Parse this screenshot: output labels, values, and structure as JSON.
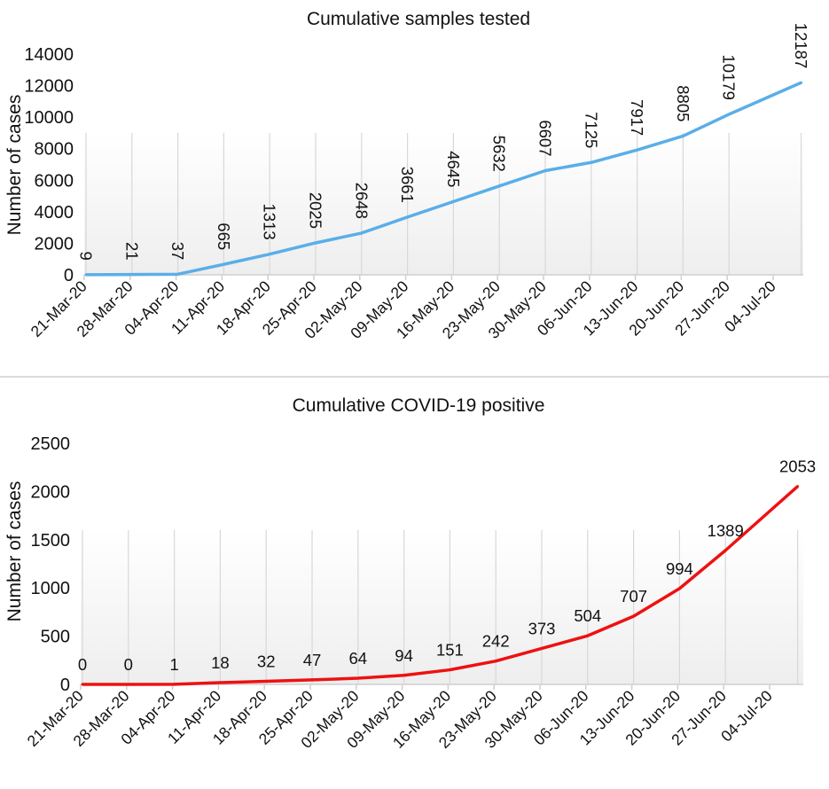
{
  "chart_data": [
    {
      "type": "line",
      "title": "Cumulative samples tested",
      "xlabel": "",
      "ylabel": "Number of cases",
      "ylim": [
        0,
        14000
      ],
      "yticks": [
        0,
        2000,
        4000,
        6000,
        8000,
        10000,
        12000,
        14000
      ],
      "xtick_labels": [
        "21-Mar-20",
        "28-Mar-20",
        "04-Apr-20",
        "11-Apr-20",
        "18-Apr-20",
        "25-Apr-20",
        "02-May-20",
        "09-May-20",
        "16-May-20",
        "23-May-20",
        "30-May-20",
        "06-Jun-20",
        "13-Jun-20",
        "20-Jun-20",
        "27-Jun-20",
        "04-Jul-20"
      ],
      "x": [
        "2020-03-21",
        "2020-03-28",
        "2020-04-04",
        "2020-04-11",
        "2020-04-18",
        "2020-04-25",
        "2020-05-02",
        "2020-05-09",
        "2020-05-16",
        "2020-05-23",
        "2020-05-30",
        "2020-06-06",
        "2020-06-13",
        "2020-06-20",
        "2020-06-27",
        "2020-07-08"
      ],
      "values": [
        9,
        21,
        37,
        665,
        1313,
        2025,
        2648,
        3661,
        4645,
        5632,
        6607,
        7125,
        7917,
        8805,
        10179,
        12187
      ],
      "data_labels": [
        "9",
        "21",
        "37",
        "665",
        "1313",
        "2025",
        "2648",
        "3661",
        "4645",
        "5632",
        "6607",
        "7125",
        "7917",
        "8805",
        "10179",
        "12187"
      ],
      "color": "#5aaee8",
      "label_orientation": "vertical",
      "grid": "vertical"
    },
    {
      "type": "line",
      "title": "Cumulative COVID-19 positive",
      "xlabel": "",
      "ylabel": "Number of cases",
      "ylim": [
        0,
        2500
      ],
      "yticks": [
        0,
        500,
        1000,
        1500,
        2000,
        2500
      ],
      "xtick_labels": [
        "21-Mar-20",
        "28-Mar-20",
        "04-Apr-20",
        "11-Apr-20",
        "18-Apr-20",
        "25-Apr-20",
        "02-May-20",
        "09-May-20",
        "16-May-20",
        "23-May-20",
        "30-May-20",
        "06-Jun-20",
        "13-Jun-20",
        "20-Jun-20",
        "27-Jun-20",
        "04-Jul-20"
      ],
      "x": [
        "2020-03-21",
        "2020-03-28",
        "2020-04-04",
        "2020-04-11",
        "2020-04-18",
        "2020-04-25",
        "2020-05-02",
        "2020-05-09",
        "2020-05-16",
        "2020-05-23",
        "2020-05-30",
        "2020-06-06",
        "2020-06-13",
        "2020-06-20",
        "2020-06-27",
        "2020-07-08"
      ],
      "values": [
        0,
        0,
        1,
        18,
        32,
        47,
        64,
        94,
        151,
        242,
        373,
        504,
        707,
        994,
        1389,
        2053
      ],
      "data_labels": [
        "0",
        "0",
        "1",
        "18",
        "32",
        "47",
        "64",
        "94",
        "151",
        "242",
        "373",
        "504",
        "707",
        "994",
        "1389",
        "2053"
      ],
      "color": "#ee1111",
      "label_orientation": "horizontal",
      "grid": "vertical"
    }
  ]
}
